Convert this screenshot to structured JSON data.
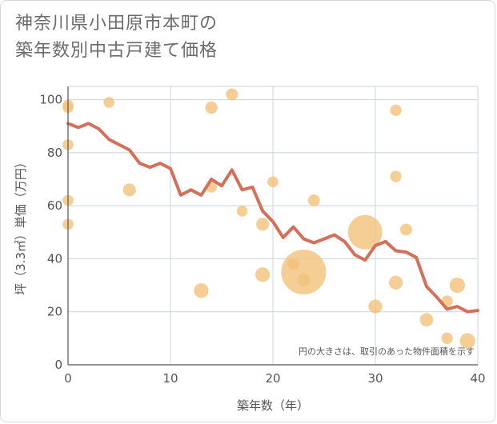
{
  "title": {
    "line1": "神奈川県小田原市本町の",
    "line2": "築年数別中古戸建て価格"
  },
  "note": "円の大きさは、取引のあった物件面積を示す",
  "colors": {
    "line": "#d4705a",
    "bubble": "#f3c27a",
    "grid": "#c8d4e0",
    "axis": "#555555"
  },
  "chart_data": {
    "type": "scatter",
    "xlabel": "築年数（年）",
    "ylabel": "坪（3.3㎡）単価（万円）",
    "xlim": [
      0,
      40
    ],
    "ylim": [
      0,
      105
    ],
    "xticks": [
      0,
      10,
      20,
      30,
      40
    ],
    "yticks": [
      0,
      20,
      40,
      60,
      80,
      100
    ],
    "grid": true,
    "trend_line": {
      "x": [
        0,
        1,
        2,
        3,
        4,
        5,
        6,
        7,
        8,
        9,
        10,
        11,
        12,
        13,
        14,
        15,
        16,
        17,
        18,
        19,
        20,
        21,
        22,
        23,
        24,
        25,
        26,
        27,
        28,
        29,
        30,
        31,
        32,
        33,
        34,
        35,
        36,
        37,
        38,
        39,
        40
      ],
      "y": [
        91,
        89.5,
        91,
        89,
        85,
        83,
        81,
        76,
        74.5,
        76,
        74,
        64,
        66,
        64,
        70,
        67.5,
        73.5,
        66,
        67,
        58,
        54,
        48,
        52,
        47.5,
        46,
        47.5,
        49,
        46.5,
        41.5,
        39.5,
        45,
        46.5,
        43,
        42.5,
        40.5,
        29.5,
        25.5,
        21,
        22,
        20,
        20.5
      ]
    },
    "bubbles": [
      {
        "x": 0,
        "y": 98,
        "size": 1
      },
      {
        "x": 0,
        "y": 97,
        "size": 1
      },
      {
        "x": 0,
        "y": 83,
        "size": 1
      },
      {
        "x": 0,
        "y": 62,
        "size": 1
      },
      {
        "x": 0,
        "y": 53,
        "size": 1
      },
      {
        "x": 4,
        "y": 99,
        "size": 1
      },
      {
        "x": 6,
        "y": 66,
        "size": 1.4
      },
      {
        "x": 13,
        "y": 28,
        "size": 1.8
      },
      {
        "x": 14,
        "y": 97,
        "size": 1.3
      },
      {
        "x": 14,
        "y": 67,
        "size": 1
      },
      {
        "x": 16,
        "y": 102,
        "size": 1.2
      },
      {
        "x": 17,
        "y": 58,
        "size": 1
      },
      {
        "x": 19,
        "y": 53,
        "size": 1.4
      },
      {
        "x": 19,
        "y": 34,
        "size": 1.8
      },
      {
        "x": 20,
        "y": 69,
        "size": 1
      },
      {
        "x": 22,
        "y": 38,
        "size": 1.2
      },
      {
        "x": 23,
        "y": 35,
        "size": 17
      },
      {
        "x": 23,
        "y": 32,
        "size": 1.4
      },
      {
        "x": 24,
        "y": 62,
        "size": 1.2
      },
      {
        "x": 29,
        "y": 50,
        "size": 10
      },
      {
        "x": 30,
        "y": 22,
        "size": 1.6
      },
      {
        "x": 32,
        "y": 96,
        "size": 1.1
      },
      {
        "x": 32,
        "y": 71,
        "size": 1.1
      },
      {
        "x": 32,
        "y": 31,
        "size": 1.6
      },
      {
        "x": 33,
        "y": 51,
        "size": 1.2
      },
      {
        "x": 35,
        "y": 17,
        "size": 1.5
      },
      {
        "x": 37,
        "y": 24,
        "size": 1.1
      },
      {
        "x": 37,
        "y": 10,
        "size": 1.1
      },
      {
        "x": 38,
        "y": 30,
        "size": 2
      },
      {
        "x": 39,
        "y": 9,
        "size": 2
      }
    ]
  }
}
